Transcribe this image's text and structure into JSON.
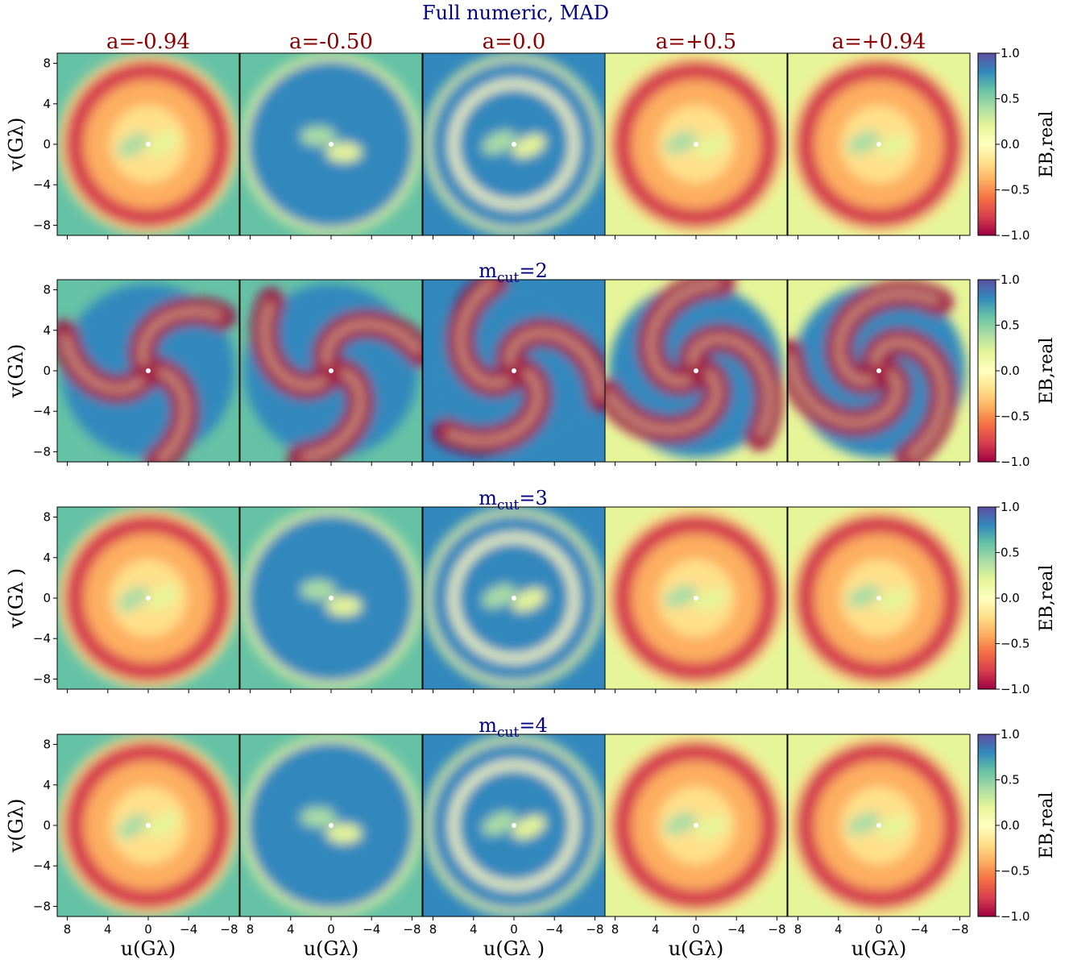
{
  "title": "Full numeric, MAD",
  "columns": [
    "a=-0.94",
    "a=-0.50",
    "a=0.0",
    "a=+0.5",
    "a=+0.94"
  ],
  "row_titles": [
    "",
    "m",
    "m",
    "m"
  ],
  "row_title_subs": [
    "",
    "cut",
    "cut",
    "cut"
  ],
  "row_title_values": [
    "",
    "=2",
    "=3",
    "=4"
  ],
  "ylabels": [
    "v(Gλ)",
    "v(Gλ)",
    "v(Gλ )",
    "v(Gλ)"
  ],
  "xlabels": [
    "u(Gλ)",
    "u(Gλ)",
    "u(Gλ )",
    "u(Gλ)",
    "u(Gλ)"
  ],
  "colorbar_label": "EB,real",
  "colors": {
    "title": "#000080",
    "column_title": "#8b0000",
    "cmap": [
      "#9e0142",
      "#d53e4f",
      "#f46d43",
      "#fdae61",
      "#fee08b",
      "#ffffbf",
      "#e6f598",
      "#abdda4",
      "#66c2a5",
      "#3288bd",
      "#5e4fa2"
    ]
  },
  "chart_data": {
    "type": "heatmap",
    "colormap": "Spectral",
    "rows": 4,
    "cols": 5,
    "x_ticks": [
      8,
      4,
      0,
      -4,
      -8
    ],
    "x_tick_labels": [
      "8",
      "4",
      "0",
      "−4",
      "−8"
    ],
    "y_ticks": [
      8,
      4,
      0,
      -4,
      -8
    ],
    "y_tick_labels": [
      "8",
      "4",
      "0",
      "−4",
      "−8"
    ],
    "xlim": [
      9,
      -9
    ],
    "ylim": [
      -9,
      9
    ],
    "colorbar_ticks": [
      1.0,
      0.5,
      0.0,
      -0.5,
      -1.0
    ],
    "colorbar_tick_labels": [
      "1.0",
      "0.5",
      "0.0",
      "−0.5",
      "−1.0"
    ],
    "clim": [
      -1.0,
      1.0
    ],
    "spin": [
      -0.94,
      -0.5,
      0.0,
      0.5,
      0.94
    ],
    "mcut": [
      null,
      2,
      3,
      4
    ]
  }
}
